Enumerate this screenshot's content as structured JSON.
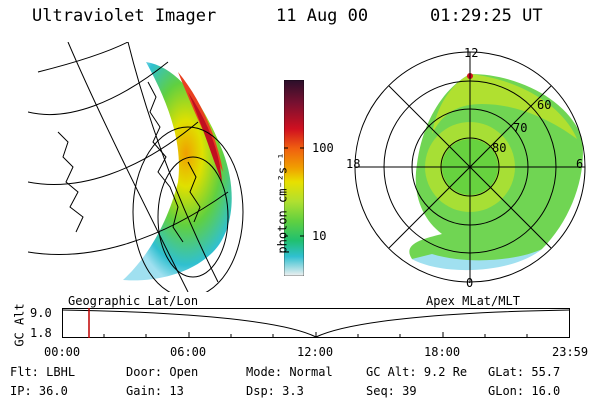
{
  "header": {
    "instrument": "Ultraviolet Imager",
    "date": "11 Aug 00",
    "time": "01:29:25 UT"
  },
  "colorbar": {
    "unit_label": "photon cm⁻²s⁻¹",
    "ticks": [
      "100",
      "10"
    ],
    "colors": [
      "#2a0f2a",
      "#7a1030",
      "#d01020",
      "#f06010",
      "#f0a000",
      "#e8e000",
      "#b0e030",
      "#60d040",
      "#20c070",
      "#30c0d0",
      "#a0e0f0",
      "#f0f0f0"
    ]
  },
  "polar": {
    "mlt_labels": {
      "top": "12",
      "left": "18",
      "right": "6",
      "bottom": "0"
    },
    "lat_labels": [
      "60",
      "70",
      "80"
    ]
  },
  "timeline": {
    "left_label": "Geographic Lat/Lon",
    "right_label": "Apex MLat/MLT",
    "axis_title": "GC Alt",
    "y_ticks": [
      "9.0",
      "1.8"
    ],
    "x_ticks": [
      "00:00",
      "06:00",
      "12:00",
      "18:00",
      "23:59"
    ],
    "marker_color": "#c00000"
  },
  "info": {
    "row1": [
      {
        "key": "Flt:",
        "val": "LBHL"
      },
      {
        "key": "Door:",
        "val": "Open"
      },
      {
        "key": "Mode:",
        "val": "Normal"
      },
      {
        "key": "GC Alt:",
        "val": "9.2 Re"
      },
      {
        "key": "GLat:",
        "val": "55.7"
      }
    ],
    "row2": [
      {
        "key": "IP:",
        "val": "36.0"
      },
      {
        "key": "Gain:",
        "val": "13"
      },
      {
        "key": "Dsp:",
        "val": "3.3"
      },
      {
        "key": "Seq:",
        "val": "39"
      },
      {
        "key": "GLon:",
        "val": "16.0"
      }
    ]
  }
}
